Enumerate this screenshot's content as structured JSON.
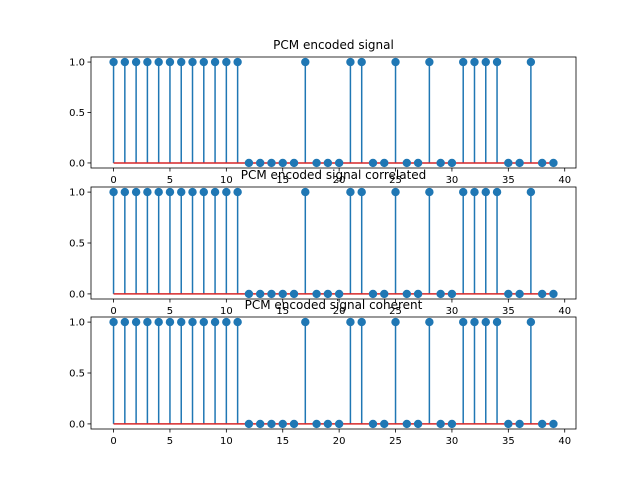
{
  "chart_data": [
    {
      "type": "stem",
      "title": "PCM encoded signal",
      "xlabel": "",
      "ylabel": "",
      "xlim": [
        -2,
        41
      ],
      "ylim": [
        -0.05,
        1.05
      ],
      "xticks": [
        "0",
        "5",
        "10",
        "15",
        "20",
        "25",
        "30",
        "35",
        "40"
      ],
      "yticks": [
        "0.0",
        "0.5",
        "1.0"
      ],
      "grid": false,
      "x": [
        0,
        1,
        2,
        3,
        4,
        5,
        6,
        7,
        8,
        9,
        10,
        11,
        12,
        13,
        14,
        15,
        16,
        17,
        18,
        19,
        20,
        21,
        22,
        23,
        24,
        25,
        26,
        27,
        28,
        29,
        30,
        31,
        32,
        33,
        34,
        35,
        36,
        37,
        38,
        39
      ],
      "values": [
        1,
        1,
        1,
        1,
        1,
        1,
        1,
        1,
        1,
        1,
        1,
        1,
        0,
        0,
        0,
        0,
        0,
        1,
        0,
        0,
        0,
        1,
        1,
        0,
        0,
        1,
        0,
        0,
        1,
        0,
        0,
        1,
        1,
        1,
        1,
        0,
        0,
        1,
        0,
        0
      ]
    },
    {
      "type": "stem",
      "title": "PCM encoded signal correlated",
      "xlabel": "",
      "ylabel": "",
      "xlim": [
        -2,
        41
      ],
      "ylim": [
        -0.05,
        1.05
      ],
      "xticks": [
        "0",
        "5",
        "10",
        "15",
        "20",
        "25",
        "30",
        "35",
        "40"
      ],
      "yticks": [
        "0.0",
        "0.5",
        "1.0"
      ],
      "grid": false,
      "x": [
        0,
        1,
        2,
        3,
        4,
        5,
        6,
        7,
        8,
        9,
        10,
        11,
        12,
        13,
        14,
        15,
        16,
        17,
        18,
        19,
        20,
        21,
        22,
        23,
        24,
        25,
        26,
        27,
        28,
        29,
        30,
        31,
        32,
        33,
        34,
        35,
        36,
        37,
        38,
        39
      ],
      "values": [
        1,
        1,
        1,
        1,
        1,
        1,
        1,
        1,
        1,
        1,
        1,
        1,
        0,
        0,
        0,
        0,
        0,
        1,
        0,
        0,
        0,
        1,
        1,
        0,
        0,
        1,
        0,
        0,
        1,
        0,
        0,
        1,
        1,
        1,
        1,
        0,
        0,
        1,
        0,
        0
      ]
    },
    {
      "type": "stem",
      "title": "PCM encoded signal coherent",
      "xlabel": "",
      "ylabel": "",
      "xlim": [
        -2,
        41
      ],
      "ylim": [
        -0.05,
        1.05
      ],
      "xticks": [
        "0",
        "5",
        "10",
        "15",
        "20",
        "25",
        "30",
        "35",
        "40"
      ],
      "yticks": [
        "0.0",
        "0.5",
        "1.0"
      ],
      "grid": false,
      "x": [
        0,
        1,
        2,
        3,
        4,
        5,
        6,
        7,
        8,
        9,
        10,
        11,
        12,
        13,
        14,
        15,
        16,
        17,
        18,
        19,
        20,
        21,
        22,
        23,
        24,
        25,
        26,
        27,
        28,
        29,
        30,
        31,
        32,
        33,
        34,
        35,
        36,
        37,
        38,
        39
      ],
      "values": [
        1,
        1,
        1,
        1,
        1,
        1,
        1,
        1,
        1,
        1,
        1,
        1,
        0,
        0,
        0,
        0,
        0,
        1,
        0,
        0,
        0,
        1,
        1,
        0,
        0,
        1,
        0,
        0,
        1,
        0,
        0,
        1,
        1,
        1,
        1,
        0,
        0,
        1,
        0,
        0
      ]
    }
  ],
  "colors": {
    "stem": "#1f77b4",
    "marker": "#1f77b4",
    "baseline": "#d62728",
    "axes": "#000000"
  }
}
